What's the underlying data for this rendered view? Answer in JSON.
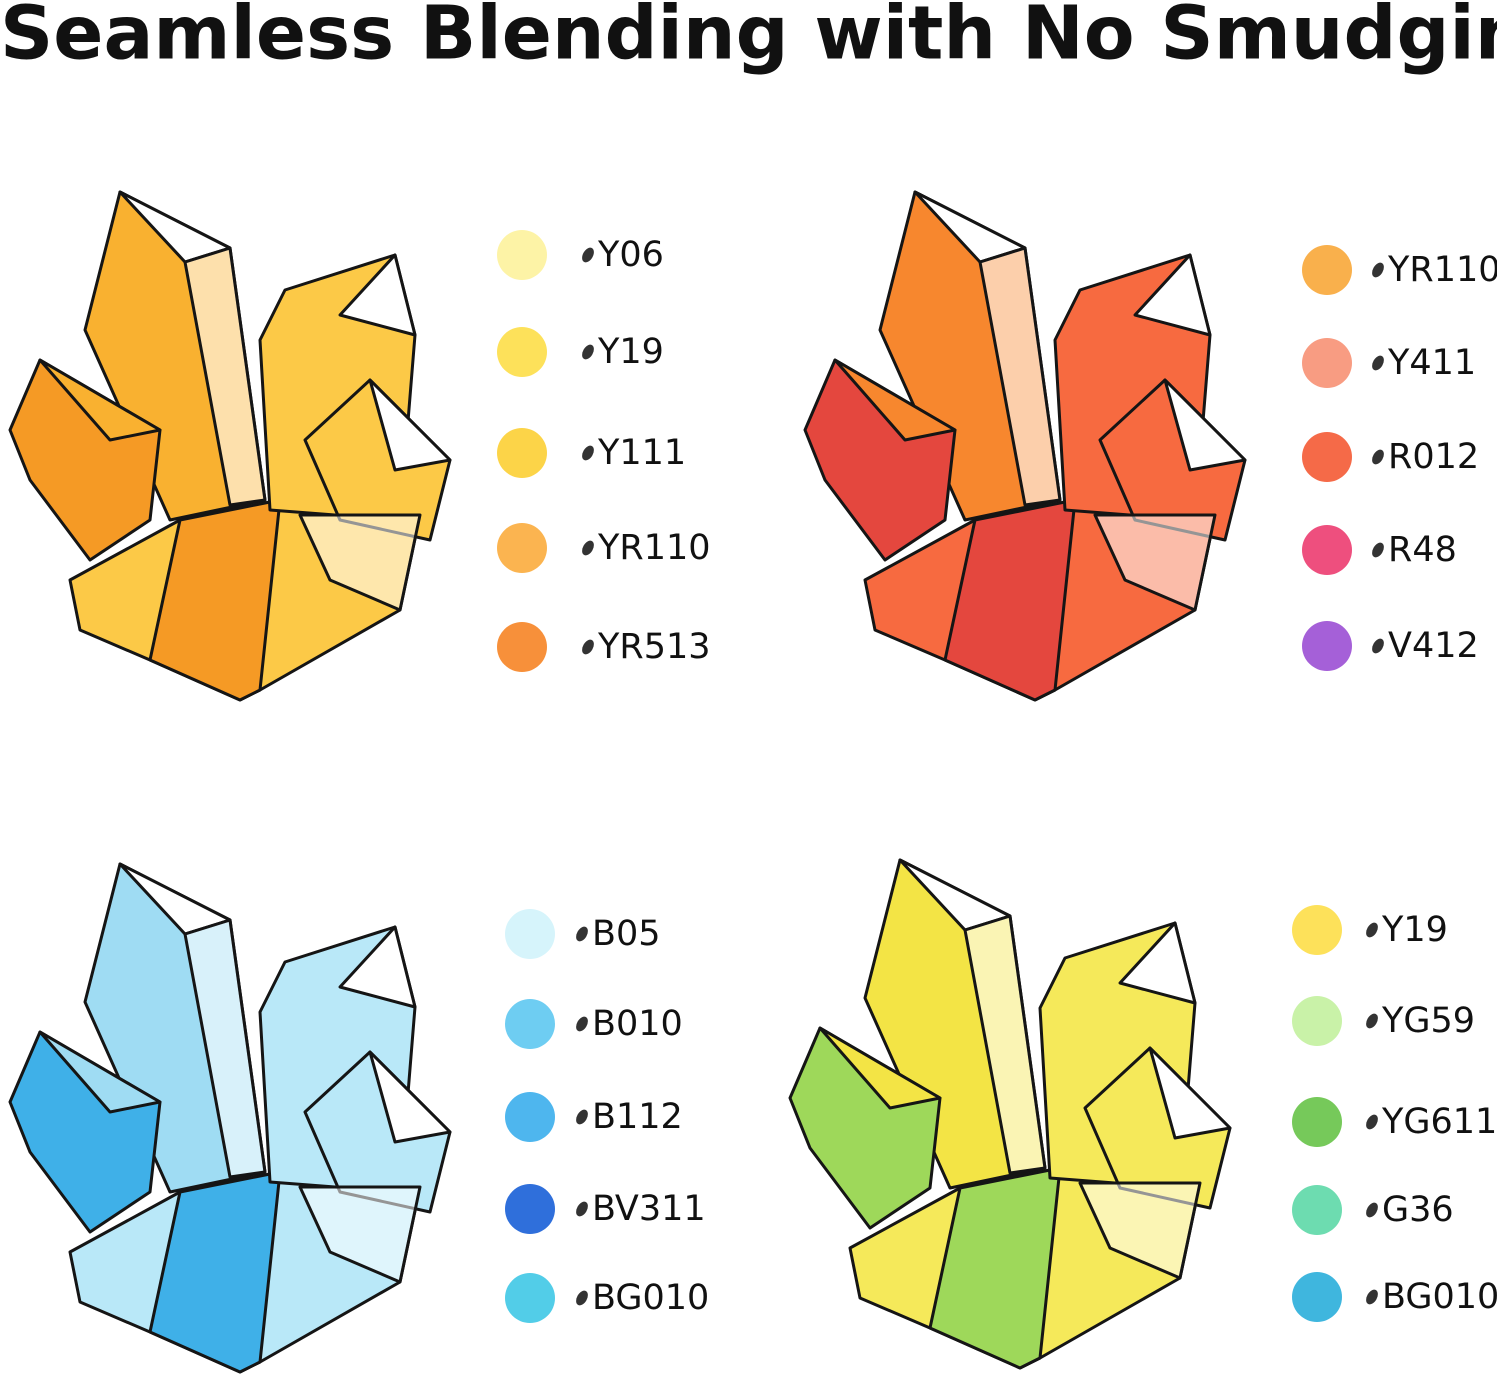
{
  "title": "Seamless Blending with No Smudging",
  "panels": [
    {
      "swatches": [
        {
          "label": "Y06",
          "color": "#fdf3a6"
        },
        {
          "label": "Y19",
          "color": "#fde15a"
        },
        {
          "label": "Y111",
          "color": "#fcd448"
        },
        {
          "label": "YR110",
          "color": "#fbb450"
        },
        {
          "label": "YR513",
          "color": "#f7903a"
        }
      ]
    },
    {
      "swatches": [
        {
          "label": "YR110",
          "color": "#f9b04c"
        },
        {
          "label": "Y411",
          "color": "#f89c82"
        },
        {
          "label": "R012",
          "color": "#f56a48"
        },
        {
          "label": "R48",
          "color": "#ee4f7e"
        },
        {
          "label": "V412",
          "color": "#a560d8"
        }
      ]
    },
    {
      "swatches": [
        {
          "label": "B05",
          "color": "#d6f4fb"
        },
        {
          "label": "B010",
          "color": "#6ecdf2"
        },
        {
          "label": "B112",
          "color": "#4eb6ee"
        },
        {
          "label": "BV311",
          "color": "#2f6fdb"
        },
        {
          "label": "BG010",
          "color": "#52cde8"
        }
      ]
    },
    {
      "swatches": [
        {
          "label": "Y19",
          "color": "#fde15a"
        },
        {
          "label": "YG59",
          "color": "#c9f2a8"
        },
        {
          "label": "YG611",
          "color": "#76c95a"
        },
        {
          "label": "G36",
          "color": "#6ddcb0"
        },
        {
          "label": "BG010",
          "color": "#3fb6de"
        }
      ]
    }
  ]
}
